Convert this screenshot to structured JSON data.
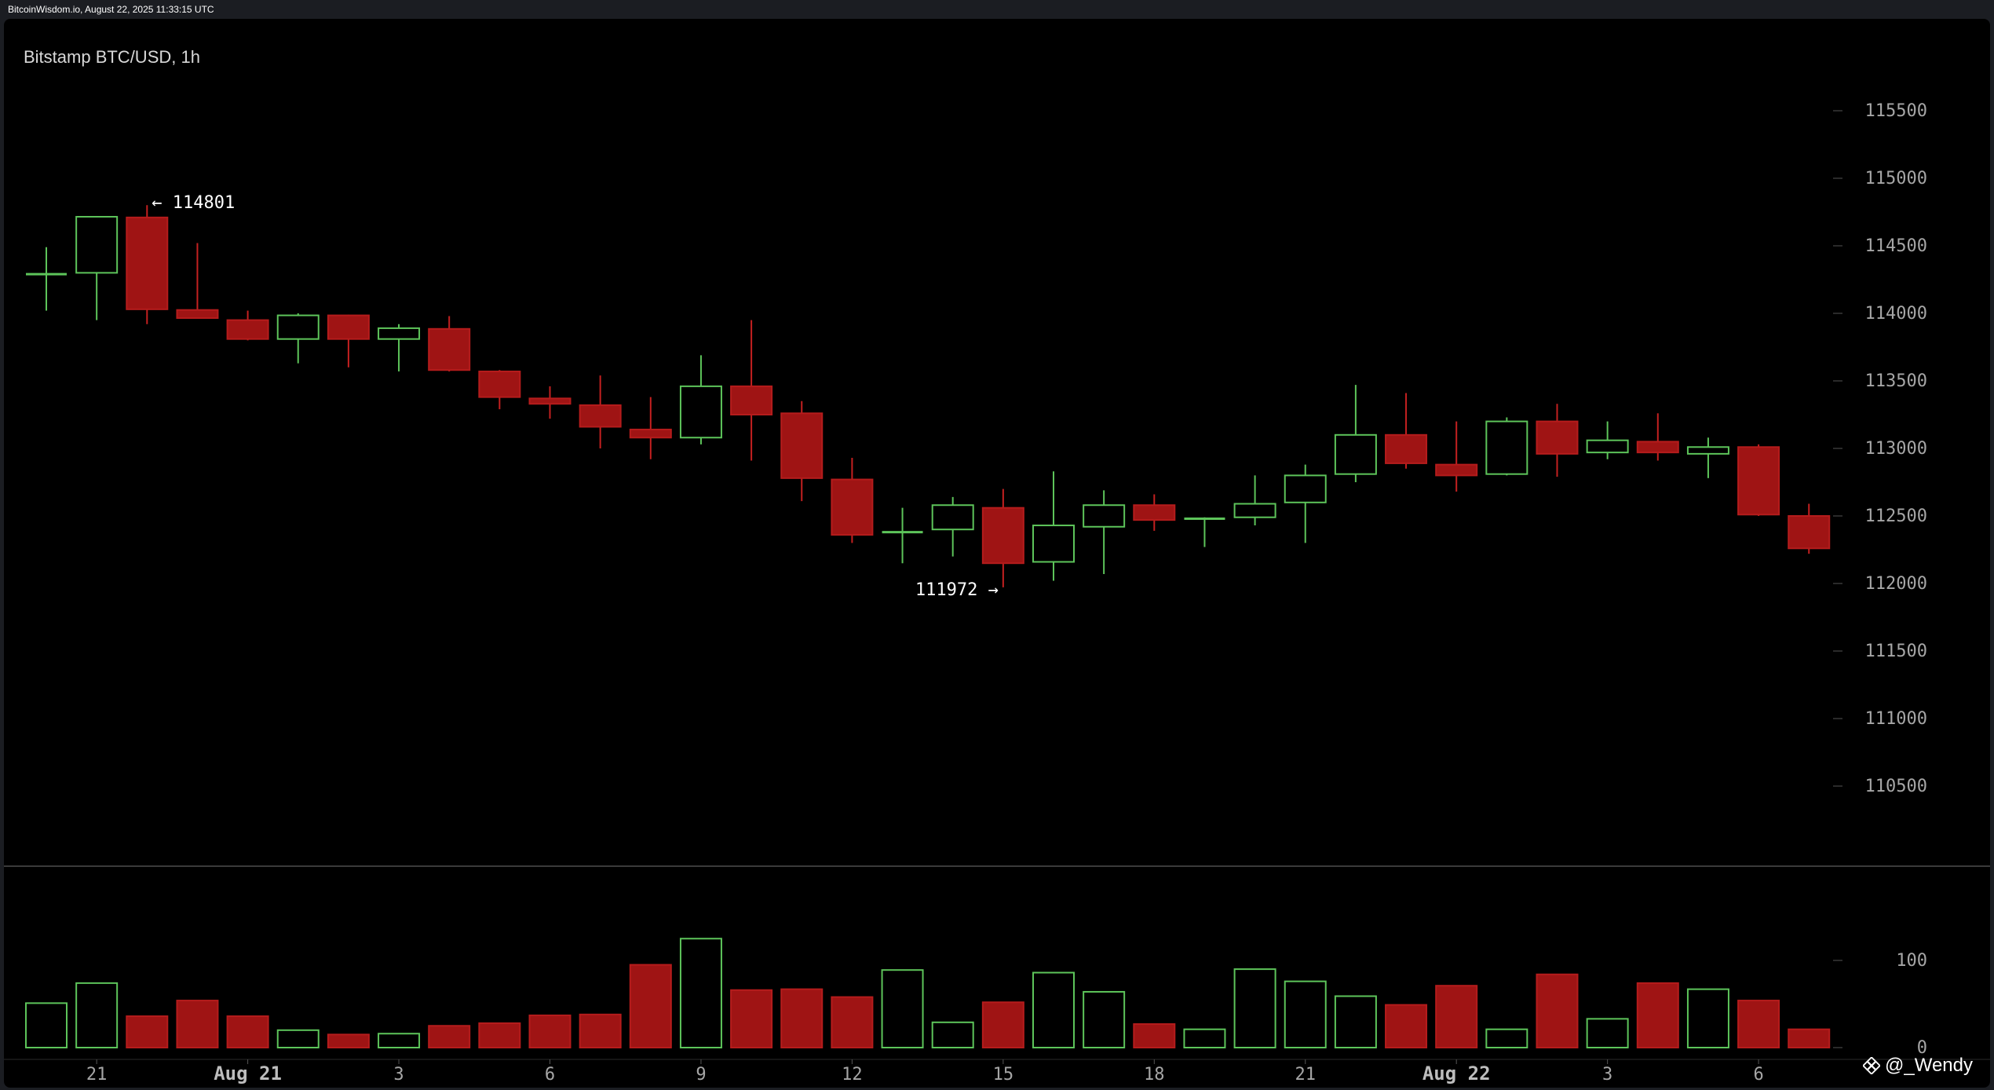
{
  "header": {
    "source_line": "BitcoinWisdom.io, August 22, 2025 11:33:15 UTC"
  },
  "chart_data": {
    "type": "candlestick",
    "title": "Bitstamp BTC/USD, 1h",
    "price_axis": {
      "ticks": [
        110500,
        111000,
        111500,
        112000,
        112500,
        113000,
        113500,
        114000,
        114500,
        115000,
        115500
      ],
      "range": [
        110000,
        115900
      ]
    },
    "volume_axis": {
      "ticks": [
        0,
        100
      ],
      "range": [
        0,
        135
      ]
    },
    "x_tick_labels": [
      {
        "label": "21",
        "index": 1,
        "bold": false
      },
      {
        "label": "Aug 21",
        "index": 4,
        "bold": true
      },
      {
        "label": "3",
        "index": 7,
        "bold": false
      },
      {
        "label": "6",
        "index": 10,
        "bold": false
      },
      {
        "label": "9",
        "index": 13,
        "bold": false
      },
      {
        "label": "12",
        "index": 16,
        "bold": false
      },
      {
        "label": "15",
        "index": 19,
        "bold": false
      },
      {
        "label": "18",
        "index": 22,
        "bold": false
      },
      {
        "label": "21",
        "index": 25,
        "bold": false
      },
      {
        "label": "Aug 22",
        "index": 28,
        "bold": true
      },
      {
        "label": "3",
        "index": 31,
        "bold": false
      },
      {
        "label": "6",
        "index": 34,
        "bold": false
      }
    ],
    "candles": [
      {
        "o": 114285,
        "h": 114490,
        "l": 114020,
        "c": 114290,
        "v": 51
      },
      {
        "o": 114300,
        "h": 114720,
        "l": 113950,
        "c": 114715,
        "v": 74
      },
      {
        "o": 114710,
        "h": 114801,
        "l": 113920,
        "c": 114030,
        "v": 36
      },
      {
        "o": 114025,
        "h": 114520,
        "l": 113960,
        "c": 113965,
        "v": 54
      },
      {
        "o": 113950,
        "h": 114020,
        "l": 113800,
        "c": 113810,
        "v": 36
      },
      {
        "o": 113810,
        "h": 114000,
        "l": 113630,
        "c": 113985,
        "v": 20
      },
      {
        "o": 113985,
        "h": 113990,
        "l": 113600,
        "c": 113810,
        "v": 15
      },
      {
        "o": 113810,
        "h": 113920,
        "l": 113570,
        "c": 113890,
        "v": 16
      },
      {
        "o": 113885,
        "h": 113980,
        "l": 113570,
        "c": 113580,
        "v": 25
      },
      {
        "o": 113570,
        "h": 113580,
        "l": 113290,
        "c": 113380,
        "v": 28
      },
      {
        "o": 113370,
        "h": 113460,
        "l": 113220,
        "c": 113330,
        "v": 37
      },
      {
        "o": 113320,
        "h": 113540,
        "l": 113000,
        "c": 113160,
        "v": 38
      },
      {
        "o": 113140,
        "h": 113380,
        "l": 112920,
        "c": 113080,
        "v": 95
      },
      {
        "o": 113080,
        "h": 113690,
        "l": 113030,
        "c": 113460,
        "v": 125
      },
      {
        "o": 113460,
        "h": 113950,
        "l": 112910,
        "c": 113250,
        "v": 66
      },
      {
        "o": 113260,
        "h": 113350,
        "l": 112610,
        "c": 112780,
        "v": 67
      },
      {
        "o": 112770,
        "h": 112930,
        "l": 112300,
        "c": 112360,
        "v": 58
      },
      {
        "o": 112370,
        "h": 112560,
        "l": 112150,
        "c": 112380,
        "v": 89
      },
      {
        "o": 112400,
        "h": 112640,
        "l": 112200,
        "c": 112580,
        "v": 29
      },
      {
        "o": 112560,
        "h": 112700,
        "l": 111972,
        "c": 112150,
        "v": 52
      },
      {
        "o": 112160,
        "h": 112830,
        "l": 112020,
        "c": 112430,
        "v": 86
      },
      {
        "o": 112420,
        "h": 112690,
        "l": 112070,
        "c": 112580,
        "v": 64
      },
      {
        "o": 112580,
        "h": 112660,
        "l": 112390,
        "c": 112470,
        "v": 27
      },
      {
        "o": 112470,
        "h": 112490,
        "l": 112270,
        "c": 112480,
        "v": 21
      },
      {
        "o": 112490,
        "h": 112800,
        "l": 112430,
        "c": 112590,
        "v": 90
      },
      {
        "o": 112600,
        "h": 112880,
        "l": 112300,
        "c": 112800,
        "v": 76
      },
      {
        "o": 112810,
        "h": 113470,
        "l": 112750,
        "c": 113100,
        "v": 59
      },
      {
        "o": 113100,
        "h": 113410,
        "l": 112850,
        "c": 112890,
        "v": 49
      },
      {
        "o": 112880,
        "h": 113200,
        "l": 112680,
        "c": 112800,
        "v": 71
      },
      {
        "o": 112810,
        "h": 113230,
        "l": 112800,
        "c": 113200,
        "v": 21
      },
      {
        "o": 113200,
        "h": 113330,
        "l": 112790,
        "c": 112960,
        "v": 84
      },
      {
        "o": 112970,
        "h": 113200,
        "l": 112920,
        "c": 113060,
        "v": 33
      },
      {
        "o": 113050,
        "h": 113260,
        "l": 112910,
        "c": 112970,
        "v": 74
      },
      {
        "o": 112960,
        "h": 113080,
        "l": 112780,
        "c": 113010,
        "v": 67
      },
      {
        "o": 113010,
        "h": 113030,
        "l": 112500,
        "c": 112510,
        "v": 54
      },
      {
        "o": 112500,
        "h": 112590,
        "l": 112220,
        "c": 112260,
        "v": 21
      }
    ],
    "annotations": [
      {
        "text": "← 114801",
        "candle": 2,
        "price": 114801,
        "side": "right"
      },
      {
        "text": "111972 →",
        "candle": 19,
        "price": 111972,
        "side": "left"
      }
    ],
    "colors": {
      "up": "#5dc45a",
      "down": "#9f1414",
      "down_border": "#b51c1c",
      "background": "#000000",
      "axis_text": "#a6a6a6",
      "separator": "#3a3a3a"
    }
  },
  "watermark": {
    "text": "@_Wendy",
    "icon": "binance-diamond-icon"
  }
}
